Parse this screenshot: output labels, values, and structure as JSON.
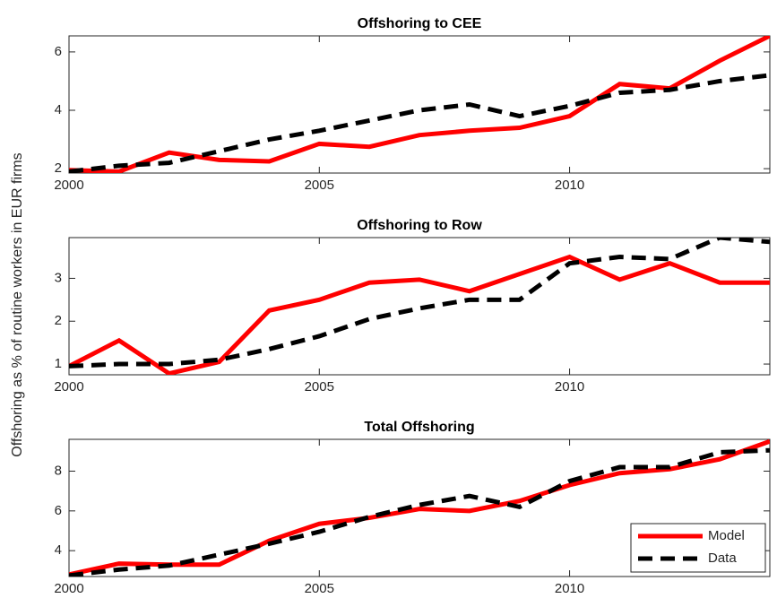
{
  "ylabel": "Offshoring as % of routine workers in EUR firms",
  "chart_data": [
    {
      "type": "line",
      "title": "Offshoring to CEE",
      "x": [
        2000,
        2001,
        2002,
        2003,
        2004,
        2005,
        2006,
        2007,
        2008,
        2009,
        2010,
        2011,
        2012,
        2013,
        2014
      ],
      "series": [
        {
          "name": "Model",
          "color": "#ff0000",
          "linestyle": "solid",
          "values": [
            1.95,
            1.9,
            2.55,
            2.3,
            2.25,
            2.85,
            2.75,
            3.15,
            3.3,
            3.4,
            3.8,
            4.9,
            4.75,
            5.7,
            6.55
          ]
        },
        {
          "name": "Data",
          "color": "#000000",
          "linestyle": "dashed",
          "values": [
            1.9,
            2.1,
            2.2,
            2.6,
            3.0,
            3.3,
            3.65,
            4.0,
            4.2,
            3.8,
            4.15,
            4.6,
            4.7,
            5.0,
            5.2
          ]
        }
      ],
      "xlim": [
        2000,
        2014
      ],
      "xticks": [
        2000,
        2005,
        2010
      ],
      "ylim": [
        1.85,
        6.55
      ],
      "yticks": [
        2,
        4,
        6
      ]
    },
    {
      "type": "line",
      "title": "Offshoring to Row",
      "x": [
        2000,
        2001,
        2002,
        2003,
        2004,
        2005,
        2006,
        2007,
        2008,
        2009,
        2010,
        2011,
        2012,
        2013,
        2014
      ],
      "series": [
        {
          "name": "Model",
          "color": "#ff0000",
          "linestyle": "solid",
          "values": [
            0.95,
            1.55,
            0.78,
            1.05,
            2.25,
            2.5,
            2.9,
            2.97,
            2.7,
            3.1,
            3.5,
            2.97,
            3.35,
            2.9,
            2.9
          ]
        },
        {
          "name": "Data",
          "color": "#000000",
          "linestyle": "dashed",
          "values": [
            0.95,
            1.0,
            1.0,
            1.1,
            1.35,
            1.65,
            2.05,
            2.3,
            2.5,
            2.5,
            3.35,
            3.5,
            3.45,
            3.95,
            3.85
          ]
        }
      ],
      "xlim": [
        2000,
        2014
      ],
      "xticks": [
        2000,
        2005,
        2010
      ],
      "ylim": [
        0.75,
        3.95
      ],
      "yticks": [
        1,
        2,
        3
      ]
    },
    {
      "type": "line",
      "title": "Total Offshoring",
      "x": [
        2000,
        2001,
        2002,
        2003,
        2004,
        2005,
        2006,
        2007,
        2008,
        2009,
        2010,
        2011,
        2012,
        2013,
        2014
      ],
      "series": [
        {
          "name": "Model",
          "color": "#ff0000",
          "linestyle": "solid",
          "values": [
            2.8,
            3.35,
            3.3,
            3.3,
            4.5,
            5.35,
            5.65,
            6.1,
            6.0,
            6.5,
            7.3,
            7.9,
            8.1,
            8.6,
            9.5
          ]
        },
        {
          "name": "Data",
          "color": "#000000",
          "linestyle": "dashed",
          "values": [
            2.75,
            3.05,
            3.25,
            3.8,
            4.35,
            4.95,
            5.7,
            6.3,
            6.75,
            6.2,
            7.5,
            8.2,
            8.2,
            8.95,
            9.05
          ]
        }
      ],
      "xlim": [
        2000,
        2014
      ],
      "xticks": [
        2000,
        2005,
        2010
      ],
      "ylim": [
        2.7,
        9.6
      ],
      "yticks": [
        4,
        6,
        8
      ],
      "legend": "lower right"
    }
  ]
}
